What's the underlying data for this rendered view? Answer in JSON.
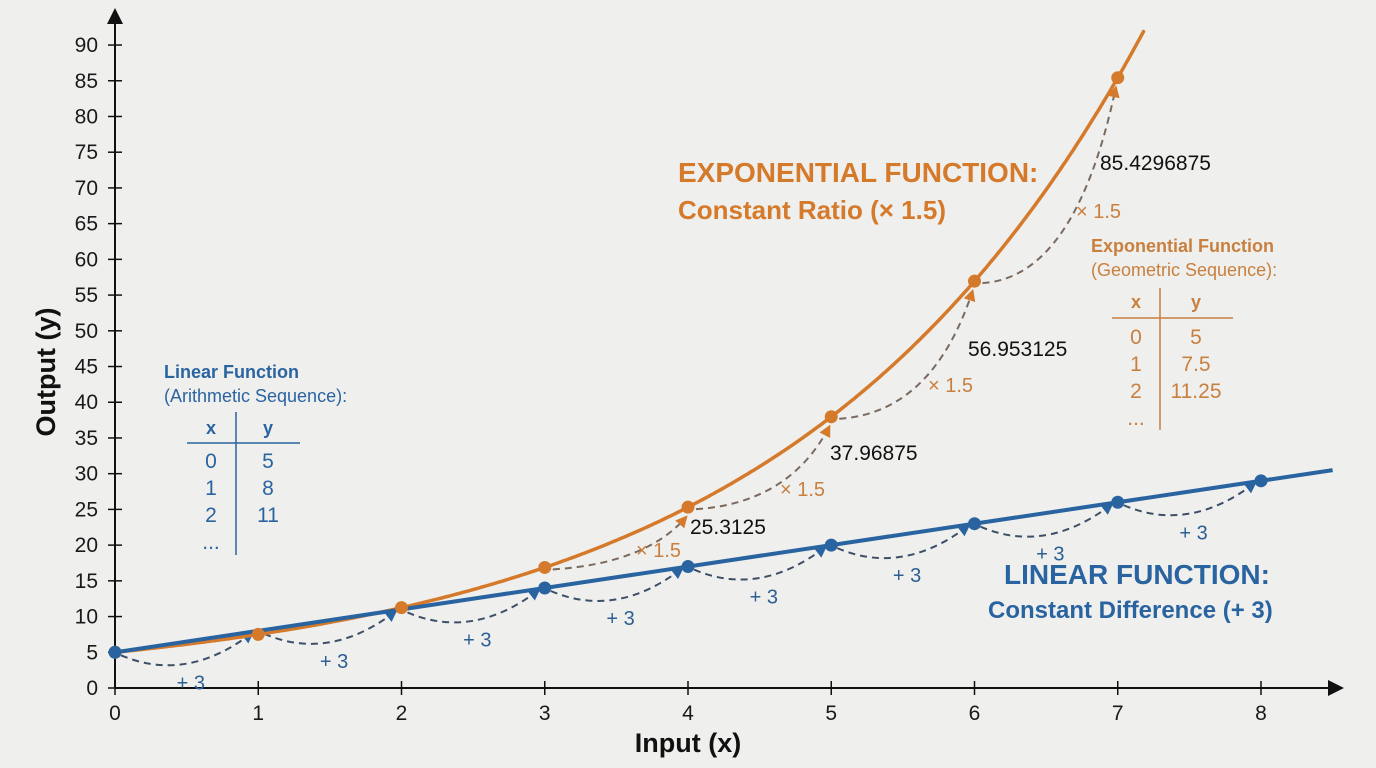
{
  "chart_data": {
    "type": "line",
    "title": "",
    "xlabel": "Input (x)",
    "ylabel": "Output (y)",
    "xlim": [
      0,
      8.5
    ],
    "ylim": [
      0,
      92
    ],
    "x_ticks": [
      0,
      1,
      2,
      3,
      4,
      5,
      6,
      7,
      8
    ],
    "y_ticks": [
      0,
      5,
      10,
      15,
      20,
      25,
      30,
      35,
      40,
      45,
      50,
      55,
      60,
      65,
      70,
      75,
      80,
      85,
      90
    ],
    "grid": false,
    "legend": "none (inline labels)",
    "x": [
      0,
      1,
      2,
      3,
      4,
      5,
      6,
      7,
      8
    ],
    "series": [
      {
        "name": "Linear Function",
        "color": "#2a64a0",
        "rule": "+ 3",
        "values": [
          5,
          8,
          11,
          14,
          17,
          20,
          23,
          26,
          29
        ]
      },
      {
        "name": "Exponential Function",
        "color": "#d57a2b",
        "rule": "× 1.5",
        "values": [
          5,
          7.5,
          11.25,
          16.875,
          25.3125,
          37.96875,
          56.953125,
          85.4296875
        ]
      }
    ],
    "annotations": {
      "exponential_title": "EXPONENTIAL FUNCTION:",
      "exponential_subtitle": "Constant Ratio (× 1.5)",
      "linear_title": "LINEAR FUNCTION:",
      "linear_subtitle": "Constant Difference (+ 3)",
      "exp_value_labels": [
        "25.3125",
        "37.96875",
        "56.953125",
        "85.4296875"
      ],
      "exp_step_label": "× 1.5",
      "lin_step_label": "+ 3"
    },
    "tables": [
      {
        "title": "Linear Function",
        "subtitle": "(Arithmetic Sequence):",
        "headers": [
          "x",
          "y"
        ],
        "rows": [
          [
            "0",
            "5"
          ],
          [
            "1",
            "8"
          ],
          [
            "2",
            "11"
          ],
          [
            "...",
            ""
          ]
        ]
      },
      {
        "title": "Exponential Function",
        "subtitle": "(Geometric Sequence):",
        "headers": [
          "x",
          "y"
        ],
        "rows": [
          [
            "0",
            "5"
          ],
          [
            "1",
            "7.5"
          ],
          [
            "2",
            "11.25"
          ],
          [
            "...",
            ""
          ]
        ]
      }
    ]
  },
  "colors": {
    "background": "#efefee",
    "linear": "#2a64a0",
    "exponential": "#d57a2b",
    "axis": "#111111"
  }
}
